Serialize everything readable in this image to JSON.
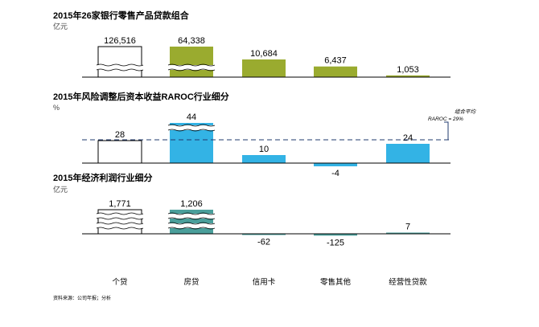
{
  "colors": {
    "olive": "#9aab2f",
    "blue": "#33b3e5",
    "teal": "#4a9f9b",
    "axis": "#000000",
    "dash": "#1f3a6e"
  },
  "categories": [
    "个贷",
    "房贷",
    "信用卡",
    "零售其他",
    "经营性贷款"
  ],
  "source": "资料来源：公司年报；分析",
  "chart_data": [
    {
      "type": "bar",
      "title": "2015年26家银行零售产品贷款组合",
      "unit": "亿元",
      "categories": [
        "个贷",
        "房贷",
        "信用卡",
        "零售其他",
        "经营性贷款"
      ],
      "values": [
        126516,
        64338,
        10684,
        6437,
        1053
      ],
      "labels": [
        "126,516",
        "64,338",
        "10,684",
        "6,437",
        "1,053"
      ],
      "styles": [
        "outline-broken",
        "olive-broken",
        "olive",
        "olive",
        "olive"
      ]
    },
    {
      "type": "bar",
      "title": "2015年风险调整后资本收益RAROC行业细分",
      "unit": "%",
      "categories": [
        "个贷",
        "房贷",
        "信用卡",
        "零售其他",
        "经营性贷款"
      ],
      "values": [
        28,
        44,
        10,
        -4,
        24
      ],
      "labels": [
        "28",
        "44",
        "10",
        "-4",
        "24"
      ],
      "styles": [
        "outline",
        "blue-broken",
        "blue",
        "blue",
        "blue"
      ],
      "reference_line": {
        "value": 29,
        "label_line1": "组合平均",
        "label_line2": "RAROC = 29%"
      }
    },
    {
      "type": "bar",
      "title": "2015年经济利润行业细分",
      "unit": "亿元",
      "categories": [
        "个贷",
        "房贷",
        "信用卡",
        "零售其他",
        "经营性贷款"
      ],
      "values": [
        1771,
        1206,
        -62,
        -125,
        7
      ],
      "labels": [
        "1,771",
        "1,206",
        "-62",
        "-125",
        "7"
      ],
      "styles": [
        "outline-broken",
        "teal-broken",
        "teal",
        "teal",
        "teal"
      ]
    }
  ]
}
